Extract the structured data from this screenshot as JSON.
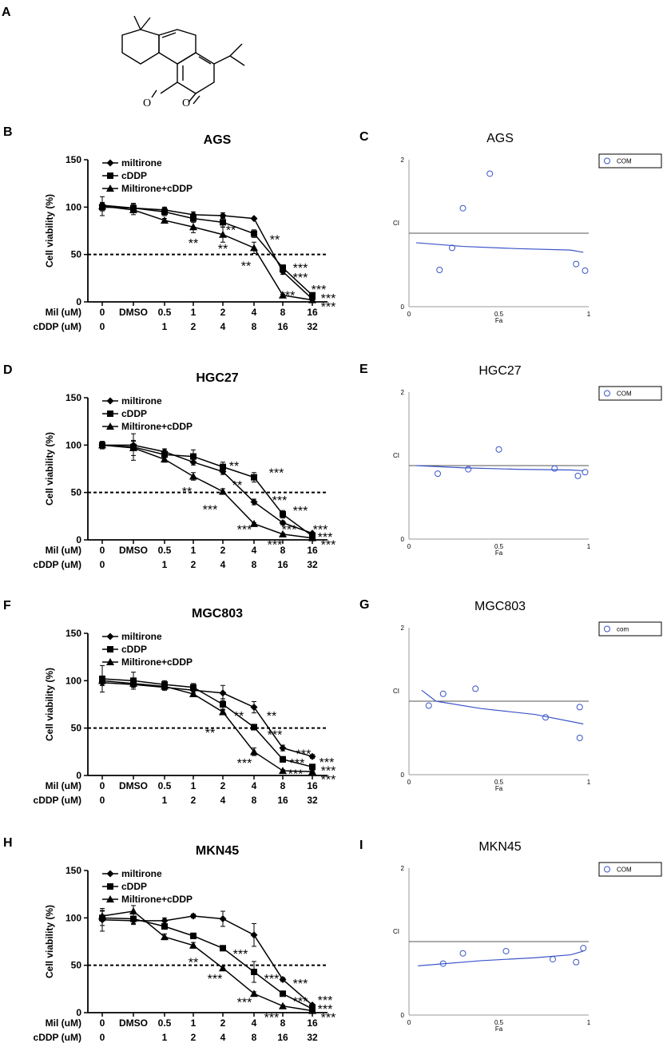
{
  "panel_a_label": "A",
  "chart_data": [
    {
      "panel": "B",
      "type": "line",
      "title": "AGS",
      "ylabel": "Cell viability (%)",
      "ylim": [
        0,
        150
      ],
      "yticks": [
        0,
        50,
        100,
        150
      ],
      "row1_label": "Mil (uM)",
      "row2_label": "cDDP (uM)",
      "row1": [
        "0",
        "DMSO",
        "0.5",
        "1",
        "2",
        "4",
        "8",
        "16"
      ],
      "row2": [
        "0",
        "",
        "1",
        "2",
        "4",
        "8",
        "16",
        "32"
      ],
      "reference_line": 50,
      "series": [
        {
          "name": "miltirone",
          "marker": "diamond",
          "values": [
            102,
            99,
            97,
            92,
            91,
            88,
            32,
            3
          ],
          "err": [
            3,
            4,
            3,
            3,
            3,
            1,
            3,
            1
          ]
        },
        {
          "name": "cDDP",
          "marker": "square",
          "values": [
            100,
            99,
            95,
            88,
            84,
            72,
            36,
            7
          ],
          "err": [
            4,
            5,
            4,
            4,
            5,
            4,
            3,
            1
          ]
        },
        {
          "name": "Miltirone+cDDP",
          "marker": "triangle",
          "values": [
            101,
            97,
            86,
            79,
            71,
            57,
            7,
            2
          ],
          "err": [
            10,
            5,
            2,
            6,
            8,
            6,
            1,
            1
          ]
        }
      ],
      "stars": [
        {
          "text": "**",
          "xi": 3,
          "y": 64,
          "dx": 0
        },
        {
          "text": "**",
          "xi": 4,
          "y": 78,
          "dx": 10
        },
        {
          "text": "**",
          "xi": 4,
          "y": 58,
          "dx": 0
        },
        {
          "text": "**",
          "xi": 5,
          "y": 68,
          "dx": 26
        },
        {
          "text": "**",
          "xi": 5,
          "y": 40,
          "dx": -10
        },
        {
          "text": "***",
          "xi": 6,
          "y": 38,
          "dx": 22
        },
        {
          "text": "***",
          "xi": 6,
          "y": 28,
          "dx": 22
        },
        {
          "text": "***",
          "xi": 6,
          "y": 9,
          "dx": 6
        },
        {
          "text": "***",
          "xi": 7,
          "y": 15,
          "dx": 8
        },
        {
          "text": "***",
          "xi": 7,
          "y": 6,
          "dx": 20
        },
        {
          "text": "***",
          "xi": 7,
          "y": -3,
          "dx": 20
        }
      ]
    },
    {
      "panel": "C",
      "type": "scatter",
      "title": "AGS",
      "xlabel": "Fa",
      "ylabel": "CI",
      "xlim": [
        0,
        1
      ],
      "ylim": [
        0,
        2
      ],
      "xticks": [
        "0",
        "0.5",
        "1"
      ],
      "yticks": [
        "0",
        "2"
      ],
      "legend": "COM",
      "reference_line": 1,
      "points": [
        [
          0.17,
          0.5
        ],
        [
          0.24,
          0.8
        ],
        [
          0.3,
          1.34
        ],
        [
          0.45,
          1.81
        ],
        [
          0.93,
          0.58
        ],
        [
          0.98,
          0.49
        ]
      ],
      "curve": [
        [
          0.04,
          0.87
        ],
        [
          0.3,
          0.82
        ],
        [
          0.6,
          0.79
        ],
        [
          0.9,
          0.77
        ],
        [
          0.97,
          0.74
        ]
      ]
    },
    {
      "panel": "D",
      "type": "line",
      "title": "HGC27",
      "ylabel": "Cell viability (%)",
      "ylim": [
        0,
        150
      ],
      "yticks": [
        0,
        50,
        100,
        150
      ],
      "row1_label": "Mil (uM)",
      "row2_label": "cDDP (uM)",
      "row1": [
        "0",
        "DMSO",
        "0.5",
        "1",
        "2",
        "4",
        "8",
        "16"
      ],
      "row2": [
        "0",
        "",
        "1",
        "2",
        "4",
        "8",
        "16",
        "32"
      ],
      "reference_line": 50,
      "series": [
        {
          "name": "miltirone",
          "marker": "diamond",
          "values": [
            100,
            100,
            93,
            82,
            72,
            40,
            18,
            7
          ],
          "err": [
            3,
            4,
            3,
            3,
            3,
            3,
            2,
            1
          ]
        },
        {
          "name": "cDDP",
          "marker": "square",
          "values": [
            100,
            98,
            90,
            88,
            77,
            66,
            27,
            4
          ],
          "err": [
            4,
            14,
            6,
            7,
            5,
            5,
            4,
            1
          ]
        },
        {
          "name": "Miltirone+cDDP",
          "marker": "triangle",
          "values": [
            100,
            97,
            85,
            67,
            51,
            17,
            6,
            2
          ],
          "err": [
            3,
            8,
            3,
            4,
            3,
            1,
            1,
            1
          ]
        }
      ],
      "stars": [
        {
          "text": "**",
          "xi": 3,
          "y": 53,
          "dx": -8
        },
        {
          "text": "**",
          "xi": 4,
          "y": 80,
          "dx": 14
        },
        {
          "text": "**",
          "xi": 4,
          "y": 60,
          "dx": 18
        },
        {
          "text": "***",
          "xi": 5,
          "y": 73,
          "dx": 28
        },
        {
          "text": "***",
          "xi": 4,
          "y": 34,
          "dx": -16
        },
        {
          "text": "***",
          "xi": 5,
          "y": 44,
          "dx": 32
        },
        {
          "text": "***",
          "xi": 5,
          "y": 13,
          "dx": -12
        },
        {
          "text": "***",
          "xi": 6,
          "y": 33,
          "dx": 22
        },
        {
          "text": "***",
          "xi": 6,
          "y": 13,
          "dx": 8
        },
        {
          "text": "***",
          "xi": 7,
          "y": 13,
          "dx": 10
        },
        {
          "text": "***",
          "xi": 7,
          "y": 5,
          "dx": 16
        },
        {
          "text": "***",
          "xi": 7,
          "y": -3,
          "dx": 20
        },
        {
          "text": "***",
          "xi": 6,
          "y": -3,
          "dx": -10
        }
      ]
    },
    {
      "panel": "E",
      "type": "scatter",
      "title": "HGC27",
      "xlabel": "Fa",
      "ylabel": "CI",
      "xlim": [
        0,
        1
      ],
      "ylim": [
        0,
        2
      ],
      "xticks": [
        "0",
        "0.5",
        "1"
      ],
      "yticks": [
        "0",
        "2"
      ],
      "legend": "COM",
      "reference_line": 1,
      "points": [
        [
          0.16,
          0.89
        ],
        [
          0.33,
          0.95
        ],
        [
          0.5,
          1.22
        ],
        [
          0.81,
          0.96
        ],
        [
          0.94,
          0.86
        ],
        [
          0.98,
          0.91
        ]
      ],
      "curve": [
        [
          0.04,
          1.0
        ],
        [
          0.3,
          0.97
        ],
        [
          0.6,
          0.95
        ],
        [
          0.9,
          0.94
        ],
        [
          0.97,
          0.93
        ]
      ]
    },
    {
      "panel": "F",
      "type": "line",
      "title": "MGC803",
      "ylabel": "Cell viability (%)",
      "ylim": [
        0,
        150
      ],
      "yticks": [
        0,
        50,
        100,
        150
      ],
      "row1_label": "Mil (uM)",
      "row2_label": "cDDP (uM)",
      "row1": [
        "0",
        "DMSO",
        "0.5",
        "1",
        "2",
        "4",
        "8",
        "16"
      ],
      "row2": [
        "0",
        "",
        "1",
        "2",
        "4",
        "8",
        "16",
        "32"
      ],
      "reference_line": 50,
      "series": [
        {
          "name": "miltirone",
          "marker": "diamond",
          "values": [
            98,
            96,
            93,
            90,
            87,
            72,
            29,
            20
          ],
          "err": [
            3,
            3,
            3,
            3,
            8,
            6,
            3,
            2
          ]
        },
        {
          "name": "cDDP",
          "marker": "square",
          "values": [
            102,
            100,
            96,
            93,
            75,
            51,
            17,
            9
          ],
          "err": [
            14,
            9,
            4,
            4,
            6,
            3,
            3,
            2
          ]
        },
        {
          "name": "Miltirone+cDDP",
          "marker": "triangle",
          "values": [
            100,
            97,
            94,
            86,
            67,
            25,
            5,
            4
          ],
          "err": [
            5,
            4,
            4,
            3,
            3,
            4,
            1,
            1
          ]
        }
      ],
      "stars": [
        {
          "text": "**",
          "xi": 4,
          "y": 65,
          "dx": 20
        },
        {
          "text": "**",
          "xi": 5,
          "y": 65,
          "dx": 22
        },
        {
          "text": "**",
          "xi": 4,
          "y": 47,
          "dx": -16
        },
        {
          "text": "***",
          "xi": 5,
          "y": 45,
          "dx": 26
        },
        {
          "text": "***",
          "xi": 5,
          "y": 15,
          "dx": -12
        },
        {
          "text": "***",
          "xi": 6,
          "y": 25,
          "dx": 26
        },
        {
          "text": "***",
          "xi": 6,
          "y": 15,
          "dx": 18
        },
        {
          "text": "***",
          "xi": 6,
          "y": 4,
          "dx": 16
        },
        {
          "text": "***",
          "xi": 7,
          "y": 16,
          "dx": 18
        },
        {
          "text": "***",
          "xi": 7,
          "y": 7,
          "dx": 20
        },
        {
          "text": "***",
          "xi": 7,
          "y": -2,
          "dx": 20
        }
      ]
    },
    {
      "panel": "G",
      "type": "scatter",
      "title": "MGC803",
      "xlabel": "Fa",
      "ylabel": "CI",
      "xlim": [
        0,
        1
      ],
      "ylim": [
        0,
        2
      ],
      "xticks": [
        "0",
        "0.5",
        "1"
      ],
      "yticks": [
        "0",
        "2"
      ],
      "legend": "com",
      "reference_line": 1,
      "points": [
        [
          0.11,
          0.94
        ],
        [
          0.19,
          1.1
        ],
        [
          0.37,
          1.17
        ],
        [
          0.76,
          0.78
        ],
        [
          0.95,
          0.92
        ],
        [
          0.95,
          0.5
        ]
      ],
      "curve": [
        [
          0.07,
          1.15
        ],
        [
          0.15,
          1.0
        ],
        [
          0.4,
          0.9
        ],
        [
          0.7,
          0.82
        ],
        [
          0.97,
          0.69
        ]
      ]
    },
    {
      "panel": "H",
      "type": "line",
      "title": "MKN45",
      "ylabel": "Cell viability (%)",
      "ylim": [
        0,
        150
      ],
      "yticks": [
        0,
        50,
        100,
        150
      ],
      "row1_label": "Mil (uM)",
      "row2_label": "cDDP (uM)",
      "row1": [
        "0",
        "DMSO",
        "0.5",
        "1",
        "2",
        "4",
        "8",
        "16"
      ],
      "row2": [
        "0",
        "",
        "1",
        "2",
        "4",
        "8",
        "16",
        "32"
      ],
      "reference_line": 50,
      "series": [
        {
          "name": "miltirone",
          "marker": "diamond",
          "values": [
            98,
            97,
            97,
            102,
            99,
            82,
            35,
            8
          ],
          "err": [
            12,
            4,
            3,
            2,
            8,
            12,
            2,
            1
          ]
        },
        {
          "name": "cDDP",
          "marker": "square",
          "values": [
            100,
            99,
            91,
            81,
            68,
            43,
            20,
            4
          ],
          "err": [
            8,
            5,
            3,
            3,
            2,
            11,
            2,
            1
          ]
        },
        {
          "name": "Miltirone+cDDP",
          "marker": "triangle",
          "values": [
            102,
            107,
            80,
            71,
            47,
            20,
            7,
            2
          ],
          "err": [
            5,
            6,
            3,
            3,
            2,
            2,
            1,
            1
          ]
        }
      ],
      "stars": [
        {
          "text": "**",
          "xi": 3,
          "y": 55,
          "dx": 0
        },
        {
          "text": "***",
          "xi": 4,
          "y": 64,
          "dx": 22
        },
        {
          "text": "***",
          "xi": 4,
          "y": 38,
          "dx": -10
        },
        {
          "text": "***",
          "xi": 5,
          "y": 38,
          "dx": 22
        },
        {
          "text": "***",
          "xi": 5,
          "y": 13,
          "dx": -12
        },
        {
          "text": "***",
          "xi": 6,
          "y": 33,
          "dx": 22
        },
        {
          "text": "***",
          "xi": 6,
          "y": 14,
          "dx": 22
        },
        {
          "text": "***",
          "xi": 6,
          "y": -3,
          "dx": -14
        },
        {
          "text": "***",
          "xi": 7,
          "y": 15,
          "dx": 16
        },
        {
          "text": "***",
          "xi": 7,
          "y": 6,
          "dx": 16
        },
        {
          "text": "***",
          "xi": 7,
          "y": -3,
          "dx": 20
        }
      ]
    },
    {
      "panel": "I",
      "type": "scatter",
      "title": "MKN45",
      "xlabel": "Fa",
      "ylabel": "CI",
      "xlim": [
        0,
        1
      ],
      "ylim": [
        0,
        2
      ],
      "xticks": [
        "0",
        "0.5",
        "1"
      ],
      "yticks": [
        "0",
        "2"
      ],
      "legend": "COM",
      "reference_line": 1,
      "points": [
        [
          0.19,
          0.7
        ],
        [
          0.3,
          0.84
        ],
        [
          0.54,
          0.87
        ],
        [
          0.8,
          0.76
        ],
        [
          0.93,
          0.72
        ],
        [
          0.97,
          0.91
        ]
      ],
      "curve": [
        [
          0.05,
          0.67
        ],
        [
          0.4,
          0.74
        ],
        [
          0.7,
          0.78
        ],
        [
          0.9,
          0.82
        ],
        [
          0.97,
          0.87
        ]
      ]
    }
  ],
  "colors": {
    "ink": "#000000",
    "blue": "#3b55c8",
    "ref": "#555555"
  }
}
